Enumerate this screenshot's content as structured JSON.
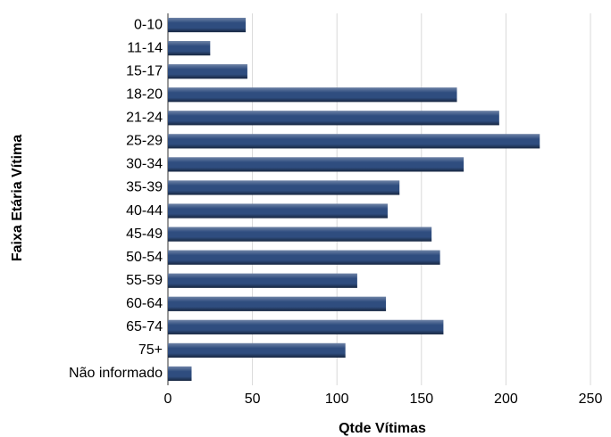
{
  "chart_data": {
    "type": "hbar",
    "x_label": "Qtde Vítimas",
    "y_label": "Faixa Etária Vítima",
    "categories": [
      "0-10",
      "11-14",
      "15-17",
      "18-20",
      "21-24",
      "25-29",
      "30-34",
      "35-39",
      "40-44",
      "45-49",
      "50-54",
      "55-59",
      "60-64",
      "65-74",
      "75+",
      "Não informado"
    ],
    "values": [
      46,
      25,
      47,
      171,
      196,
      220,
      175,
      137,
      130,
      156,
      161,
      112,
      129,
      163,
      105,
      14
    ],
    "color": "#2f4d7f",
    "xlim": [
      0,
      250
    ],
    "xticks": [
      0,
      50,
      100,
      150,
      200,
      250
    ],
    "grid": true
  }
}
